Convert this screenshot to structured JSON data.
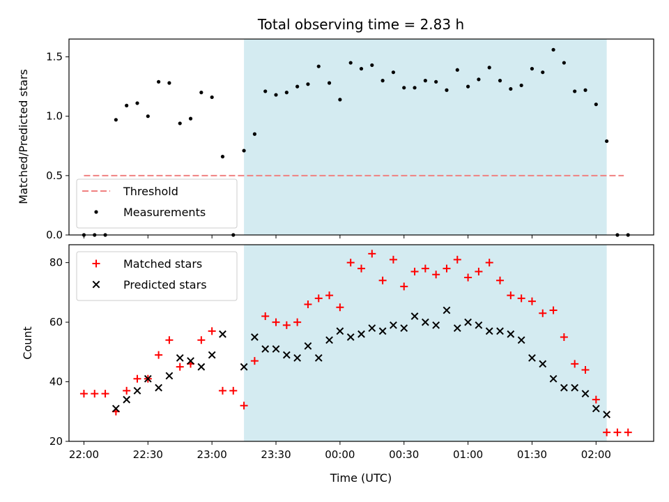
{
  "chart_data": {
    "title": "Total observing time = 2.83 h",
    "xlabel": "Time (UTC)",
    "x_tick_labels": [
      "22:00",
      "22:30",
      "23:00",
      "23:30",
      "00:00",
      "00:30",
      "01:00",
      "01:30",
      "02:00"
    ],
    "x_ticks_minutes_after_2200": [
      0,
      30,
      60,
      90,
      120,
      150,
      180,
      210,
      240
    ],
    "xlim_minutes_after_2200": [
      -7,
      267
    ],
    "observing_window_minutes_after_2200": [
      75,
      245
    ],
    "observing_window_color": "#d4ebf1",
    "panels": [
      {
        "type": "scatter",
        "ylabel": "Matched/Predicted stars",
        "ylim": [
          0,
          1.65
        ],
        "y_ticks": [
          0.0,
          0.5,
          1.0,
          1.5
        ],
        "y_tick_labels": [
          "0.0",
          "0.5",
          "1.0",
          "1.5"
        ],
        "legend_placement": "lower-left",
        "threshold": {
          "name": "Threshold",
          "value": 0.5,
          "x_range_minutes_after_2200": [
            0,
            253
          ],
          "color": "#f08080"
        },
        "series": [
          {
            "name": "Measurements",
            "marker": "dot",
            "color": "#000000",
            "x": [
              0,
              5,
              10,
              15,
              20,
              25,
              30,
              35,
              40,
              45,
              50,
              55,
              60,
              65,
              70,
              75,
              80,
              85,
              90,
              95,
              100,
              105,
              110,
              115,
              120,
              125,
              130,
              135,
              140,
              145,
              150,
              155,
              160,
              165,
              170,
              175,
              180,
              185,
              190,
              195,
              200,
              205,
              210,
              215,
              220,
              225,
              230,
              235,
              240,
              245,
              250,
              255
            ],
            "y": [
              0.0,
              0.0,
              0.0,
              0.97,
              1.09,
              1.11,
              1.0,
              1.29,
              1.28,
              0.94,
              0.98,
              1.2,
              1.16,
              0.66,
              0.0,
              0.71,
              0.85,
              1.21,
              1.18,
              1.2,
              1.25,
              1.27,
              1.42,
              1.28,
              1.14,
              1.45,
              1.4,
              1.43,
              1.3,
              1.37,
              1.24,
              1.24,
              1.3,
              1.29,
              1.22,
              1.39,
              1.25,
              1.31,
              1.41,
              1.3,
              1.23,
              1.26,
              1.4,
              1.37,
              1.56,
              1.45,
              1.21,
              1.22,
              1.1,
              0.79,
              0.0,
              0.0
            ]
          }
        ]
      },
      {
        "type": "scatter",
        "ylabel": "Count",
        "ylim": [
          20,
          86
        ],
        "y_ticks": [
          20,
          40,
          60,
          80
        ],
        "y_tick_labels": [
          "20",
          "40",
          "60",
          "80"
        ],
        "legend_placement": "upper-left",
        "series": [
          {
            "name": "Matched stars",
            "marker": "plus",
            "color": "#ff0000",
            "x": [
              0,
              5,
              10,
              15,
              20,
              25,
              30,
              35,
              40,
              45,
              50,
              55,
              60,
              65,
              70,
              75,
              80,
              85,
              90,
              95,
              100,
              105,
              110,
              115,
              120,
              125,
              130,
              135,
              140,
              145,
              150,
              155,
              160,
              165,
              170,
              175,
              180,
              185,
              190,
              195,
              200,
              205,
              210,
              215,
              220,
              225,
              230,
              235,
              240,
              245,
              250,
              255
            ],
            "y": [
              36,
              36,
              36,
              30,
              37,
              41,
              41,
              49,
              54,
              45,
              46,
              54,
              57,
              37,
              37,
              32,
              47,
              62,
              60,
              59,
              60,
              66,
              68,
              69,
              65,
              80,
              78,
              83,
              74,
              81,
              72,
              77,
              78,
              76,
              78,
              81,
              75,
              77,
              80,
              74,
              69,
              68,
              67,
              63,
              64,
              55,
              46,
              44,
              34,
              23,
              23,
              23
            ]
          },
          {
            "name": "Predicted stars",
            "marker": "x",
            "color": "#000000",
            "x": [
              15,
              20,
              25,
              30,
              35,
              40,
              45,
              50,
              55,
              60,
              65,
              75,
              80,
              85,
              90,
              95,
              100,
              105,
              110,
              115,
              120,
              125,
              130,
              135,
              140,
              145,
              150,
              155,
              160,
              165,
              170,
              175,
              180,
              185,
              190,
              195,
              200,
              205,
              210,
              215,
              220,
              225,
              230,
              235,
              240,
              245
            ],
            "y": [
              31,
              34,
              37,
              41,
              38,
              42,
              48,
              47,
              45,
              49,
              56,
              45,
              55,
              51,
              51,
              49,
              48,
              52,
              48,
              54,
              57,
              55,
              56,
              58,
              57,
              59,
              58,
              62,
              60,
              59,
              64,
              58,
              60,
              59,
              57,
              57,
              56,
              54,
              48,
              46,
              41,
              38,
              38,
              36,
              31,
              29
            ]
          }
        ]
      }
    ]
  }
}
